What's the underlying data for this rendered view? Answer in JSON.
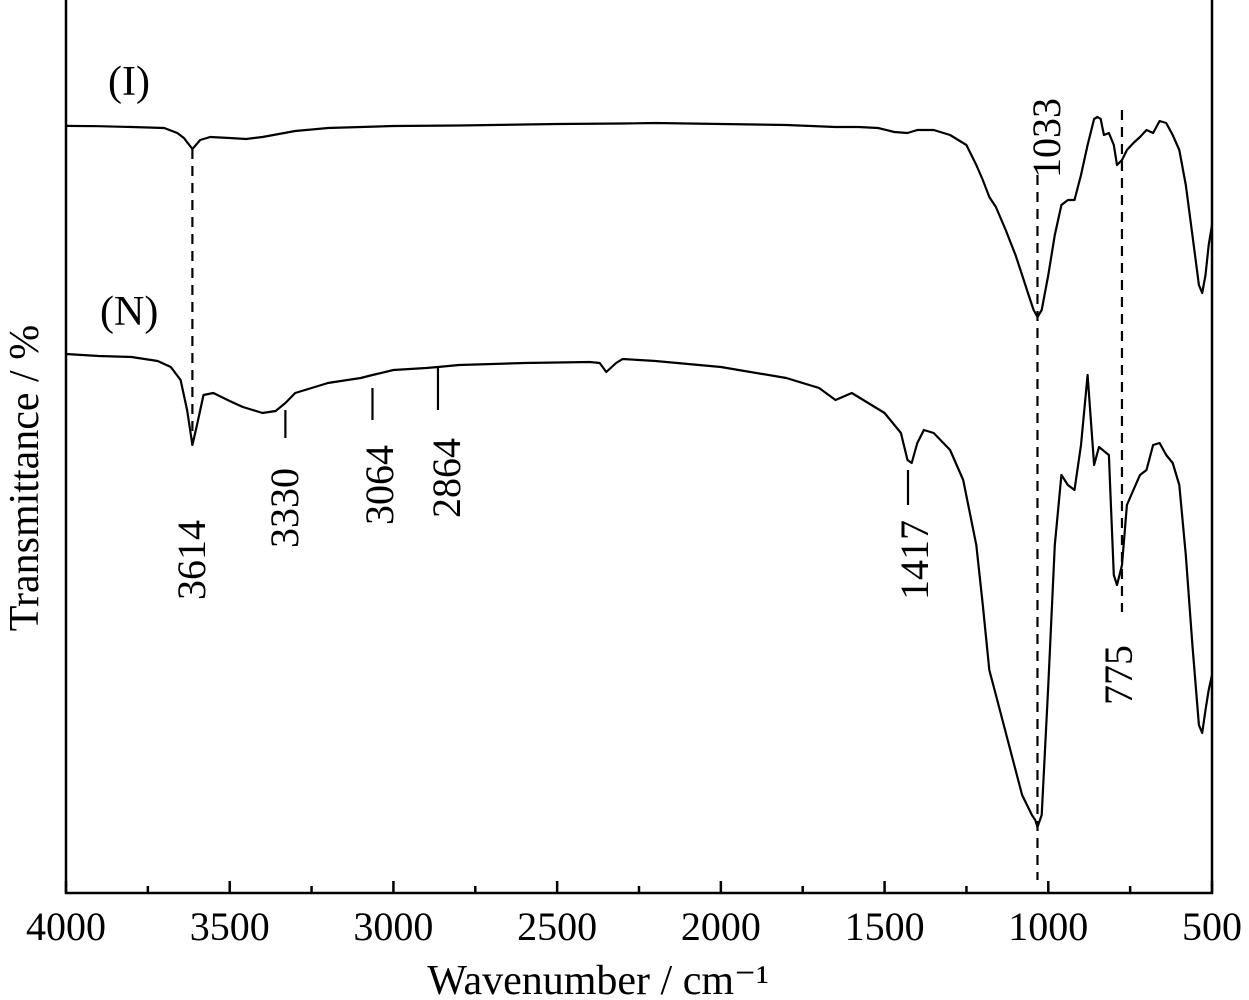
{
  "chart_data": {
    "type": "line",
    "title": "",
    "xlabel": "Wavenumber / cm⁻¹",
    "ylabel": "Transmittance / %",
    "xlim": [
      4000,
      500
    ],
    "x_reversed": true,
    "x_ticks": [
      4000,
      3500,
      3000,
      2500,
      2000,
      1500,
      1000,
      500
    ],
    "x_tick_labels": [
      "4000",
      "3500",
      "3000",
      "2500",
      "2000",
      "1500",
      "1000",
      "500"
    ],
    "x_minor_step": 250,
    "y_ticks_shown": false,
    "grid": false,
    "legend": "none",
    "series": [
      {
        "name": "(I)",
        "points": [
          [
            4000,
            0.9
          ],
          [
            3900,
            1.2
          ],
          [
            3800,
            2.0
          ],
          [
            3700,
            3.0
          ],
          [
            3660,
            8.0
          ],
          [
            3640,
            13.0
          ],
          [
            3614,
            24.0
          ],
          [
            3590,
            15.0
          ],
          [
            3560,
            12.0
          ],
          [
            3500,
            13.0
          ],
          [
            3450,
            14.0
          ],
          [
            3400,
            12.0
          ],
          [
            3300,
            6.0
          ],
          [
            3200,
            3.0
          ],
          [
            3000,
            1.0
          ],
          [
            2800,
            0.5
          ],
          [
            2500,
            -1.0
          ],
          [
            2300,
            -1.5
          ],
          [
            2200,
            -2.0
          ],
          [
            2000,
            -1.0
          ],
          [
            1800,
            0.0
          ],
          [
            1650,
            2.0
          ],
          [
            1580,
            2.0
          ],
          [
            1520,
            3.0
          ],
          [
            1470,
            7.0
          ],
          [
            1430,
            8.0
          ],
          [
            1400,
            5.0
          ],
          [
            1350,
            5.0
          ],
          [
            1300,
            10.0
          ],
          [
            1250,
            20.0
          ],
          [
            1220,
            40.0
          ],
          [
            1200,
            55.0
          ],
          [
            1180,
            72.0
          ],
          [
            1160,
            82.0
          ],
          [
            1130,
            105.0
          ],
          [
            1100,
            130.0
          ],
          [
            1080,
            150.0
          ],
          [
            1060,
            170.0
          ],
          [
            1045,
            185.0
          ],
          [
            1033,
            192.0
          ],
          [
            1020,
            185.0
          ],
          [
            1000,
            150.0
          ],
          [
            980,
            110.0
          ],
          [
            960,
            80.0
          ],
          [
            940,
            75.0
          ],
          [
            920,
            75.0
          ],
          [
            900,
            50.0
          ],
          [
            880,
            20.0
          ],
          [
            860,
            -6.0
          ],
          [
            850,
            -8.0
          ],
          [
            840,
            -6.0
          ],
          [
            830,
            10.0
          ],
          [
            815,
            8.0
          ],
          [
            800,
            20.0
          ],
          [
            790,
            40.0
          ],
          [
            775,
            35.0
          ],
          [
            760,
            25.0
          ],
          [
            740,
            18.0
          ],
          [
            720,
            12.0
          ],
          [
            700,
            5.0
          ],
          [
            680,
            8.0
          ],
          [
            660,
            -4.0
          ],
          [
            640,
            -2.0
          ],
          [
            620,
            10.0
          ],
          [
            600,
            25.0
          ],
          [
            580,
            60.0
          ],
          [
            560,
            110.0
          ],
          [
            540,
            160.0
          ],
          [
            530,
            168.0
          ],
          [
            520,
            150.0
          ],
          [
            510,
            120.0
          ],
          [
            500,
            100.0
          ]
        ]
      },
      {
        "name": "(N)",
        "points": [
          [
            4000,
            229.0
          ],
          [
            3900,
            231.0
          ],
          [
            3800,
            232.0
          ],
          [
            3720,
            236.0
          ],
          [
            3680,
            242.0
          ],
          [
            3650,
            255.0
          ],
          [
            3630,
            285.0
          ],
          [
            3614,
            320.0
          ],
          [
            3600,
            300.0
          ],
          [
            3580,
            270.0
          ],
          [
            3550,
            268.0
          ],
          [
            3500,
            276.0
          ],
          [
            3460,
            282.0
          ],
          [
            3440,
            284.0
          ],
          [
            3400,
            288.0
          ],
          [
            3360,
            286.0
          ],
          [
            3330,
            278.0
          ],
          [
            3300,
            268.0
          ],
          [
            3250,
            263.0
          ],
          [
            3200,
            258.0
          ],
          [
            3100,
            253.0
          ],
          [
            3064,
            250.0
          ],
          [
            3000,
            245.0
          ],
          [
            2900,
            243.0
          ],
          [
            2864,
            242.0
          ],
          [
            2800,
            240.0
          ],
          [
            2600,
            238.0
          ],
          [
            2400,
            237.0
          ],
          [
            2370,
            238.0
          ],
          [
            2350,
            247.0
          ],
          [
            2320,
            238.0
          ],
          [
            2300,
            234.0
          ],
          [
            2200,
            236.0
          ],
          [
            2000,
            242.0
          ],
          [
            1800,
            253.0
          ],
          [
            1700,
            263.0
          ],
          [
            1650,
            275.0
          ],
          [
            1600,
            268.0
          ],
          [
            1550,
            278.0
          ],
          [
            1500,
            288.0
          ],
          [
            1450,
            308.0
          ],
          [
            1430,
            335.0
          ],
          [
            1417,
            338.0
          ],
          [
            1400,
            318.0
          ],
          [
            1380,
            305.0
          ],
          [
            1350,
            308.0
          ],
          [
            1300,
            325.0
          ],
          [
            1260,
            355.0
          ],
          [
            1220,
            420.0
          ],
          [
            1200,
            480.0
          ],
          [
            1180,
            545.0
          ],
          [
            1160,
            570.0
          ],
          [
            1120,
            620.0
          ],
          [
            1080,
            670.0
          ],
          [
            1050,
            690.0
          ],
          [
            1040,
            695.0
          ],
          [
            1033,
            702.0
          ],
          [
            1020,
            690.0
          ],
          [
            1000,
            560.0
          ],
          [
            980,
            420.0
          ],
          [
            960,
            350.0
          ],
          [
            940,
            360.0
          ],
          [
            920,
            365.0
          ],
          [
            900,
            320.0
          ],
          [
            880,
            250.0
          ],
          [
            860,
            340.0
          ],
          [
            845,
            322.0
          ],
          [
            830,
            326.0
          ],
          [
            815,
            330.0
          ],
          [
            810,
            370.0
          ],
          [
            800,
            450.0
          ],
          [
            790,
            460.0
          ],
          [
            775,
            440.0
          ],
          [
            760,
            380.0
          ],
          [
            740,
            365.0
          ],
          [
            720,
            350.0
          ],
          [
            700,
            345.0
          ],
          [
            680,
            320.0
          ],
          [
            660,
            318.0
          ],
          [
            640,
            330.0
          ],
          [
            620,
            338.0
          ],
          [
            600,
            360.0
          ],
          [
            580,
            430.0
          ],
          [
            560,
            520.0
          ],
          [
            540,
            600.0
          ],
          [
            530,
            608.0
          ],
          [
            520,
            585.0
          ],
          [
            510,
            565.0
          ],
          [
            500,
            550.0
          ]
        ]
      }
    ],
    "guide_lines": [
      3614,
      1033,
      775
    ],
    "annotations": [
      {
        "text": "3614",
        "x": 3614,
        "series": "(N)"
      },
      {
        "text": "3330",
        "x": 3330,
        "series": "(N)"
      },
      {
        "text": "3064",
        "x": 3064,
        "series": "(N)"
      },
      {
        "text": "2864",
        "x": 2864,
        "series": "(N)"
      },
      {
        "text": "1417",
        "x": 1417,
        "series": "(N)"
      },
      {
        "text": "1033",
        "x": 1033,
        "series": "(I)"
      },
      {
        "text": "775",
        "x": 775,
        "series": "(N)"
      }
    ]
  }
}
